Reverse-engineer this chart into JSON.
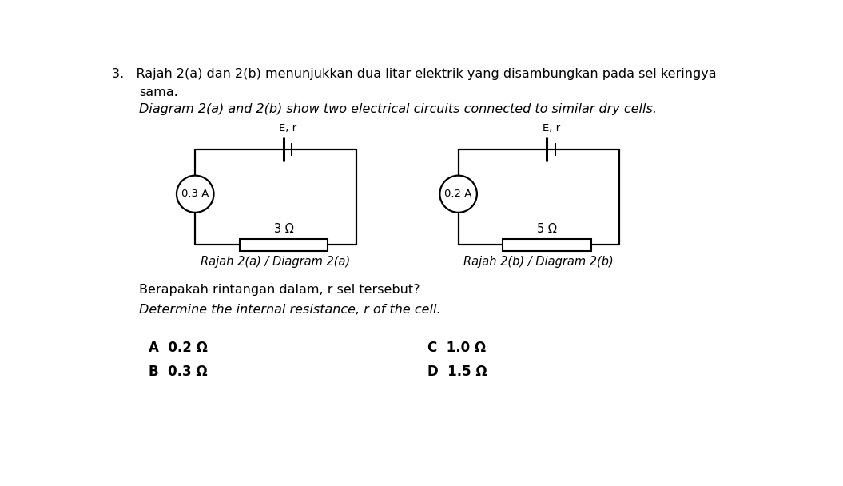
{
  "title_line1": "3.   Rajah 2(a) dan 2(b) menunjukkan dua litar elektrik yang disambungkan pada sel keringya",
  "title_line2": "sama.",
  "title_line3": "Diagram 2(a) and 2(b) show two electrical circuits connected to similar dry cells.",
  "circuit_a_label": "Rajah 2(a) / Diagram 2(a)",
  "circuit_b_label": "Rajah 2(b) / Diagram 2(b)",
  "circuit_a_current": "0.3 A",
  "circuit_b_current": "0.2 A",
  "circuit_a_resistor": "3 Ω",
  "circuit_b_resistor": "5 Ω",
  "battery_label": "E, r",
  "question_line1": "Berapakah rintangan dalam, r sel tersebut?",
  "question_line2": "Determine the internal resistance, r of the cell.",
  "option_A": "A  0.2 Ω",
  "option_B": "B  0.3 Ω",
  "option_C": "C  1.0 Ω",
  "option_D": "D  1.5 Ω",
  "bg_color": "#ffffff",
  "line_color": "#000000",
  "text_color": "#000000",
  "figw": 10.55,
  "figh": 6.08,
  "dpi": 100
}
